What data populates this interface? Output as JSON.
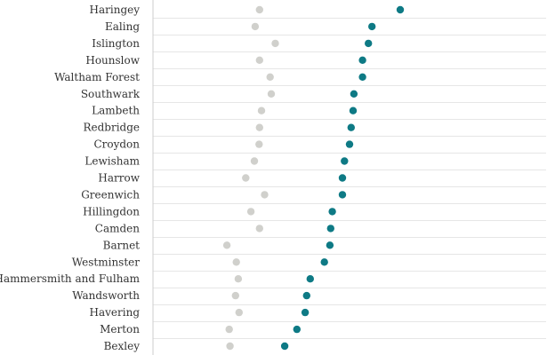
{
  "chart_data": {
    "type": "scatter",
    "title": "",
    "xlabel": "",
    "ylabel": "",
    "xlim": [
      0,
      100
    ],
    "grid": true,
    "categories": [
      "Haringey",
      "Ealing",
      "Islington",
      "Hounslow",
      "Waltham Forest",
      "Southwark",
      "Lambeth",
      "Redbridge",
      "Croydon",
      "Lewisham",
      "Harrow",
      "Greenwich",
      "Hillingdon",
      "Camden",
      "Barnet",
      "Westminster",
      "Hammersmith and Fulham",
      "Wandsworth",
      "Havering",
      "Merton",
      "Bexley"
    ],
    "series": [
      {
        "color": "#d0d0cc",
        "values": [
          27.1,
          26.0,
          31.1,
          27.1,
          29.8,
          30.1,
          27.6,
          27.1,
          27.0,
          25.8,
          23.6,
          28.4,
          24.9,
          27.1,
          18.8,
          21.2,
          21.7,
          21.0,
          21.9,
          19.4,
          19.6
        ]
      },
      {
        "color": "#0e7a85",
        "values": [
          62.9,
          55.7,
          54.8,
          53.3,
          53.3,
          51.1,
          50.9,
          50.4,
          50.0,
          48.7,
          48.2,
          48.2,
          45.6,
          45.2,
          45.0,
          43.6,
          40.0,
          39.1,
          38.7,
          36.6,
          33.5
        ]
      }
    ]
  }
}
